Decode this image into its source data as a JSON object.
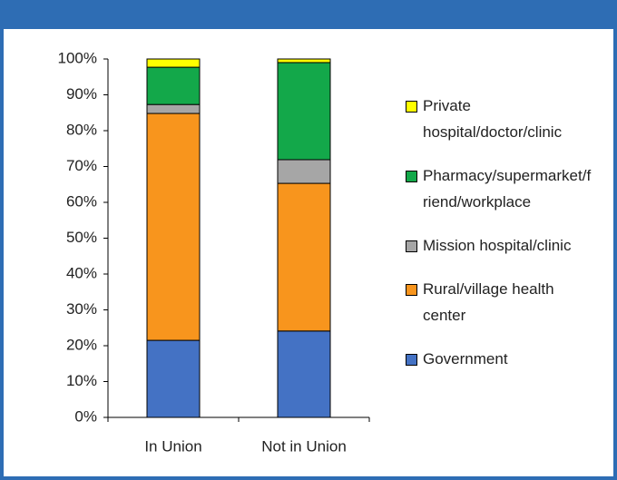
{
  "chart_data": {
    "type": "bar",
    "stacked": true,
    "categories": [
      "In Union",
      "Not in Union"
    ],
    "series": [
      {
        "name": "Government",
        "color": "#4472c4",
        "values": [
          21.5,
          24.1
        ]
      },
      {
        "name": "Rural/village health center",
        "color": "#f8951d",
        "values": [
          63.3,
          41.2
        ]
      },
      {
        "name": "Mission hospital/clinic",
        "color": "#a6a6a6",
        "values": [
          2.5,
          6.6
        ]
      },
      {
        "name": "Pharmacy/supermarket/friend/workplace",
        "color": "#13a84a",
        "values": [
          10.4,
          27.1
        ]
      },
      {
        "name": "Private hospital/doctor/clinic",
        "color": "#ffff00",
        "values": [
          2.3,
          1.0
        ]
      }
    ],
    "ylim": [
      0,
      100
    ],
    "yticks": [
      {
        "value": 0,
        "label": "0%"
      },
      {
        "value": 10,
        "label": "10%"
      },
      {
        "value": 20,
        "label": "20%"
      },
      {
        "value": 30,
        "label": "30%"
      },
      {
        "value": 40,
        "label": "40%"
      },
      {
        "value": 50,
        "label": "50%"
      },
      {
        "value": 60,
        "label": "60%"
      },
      {
        "value": 70,
        "label": "70%"
      },
      {
        "value": 80,
        "label": "80%"
      },
      {
        "value": 90,
        "label": "90%"
      },
      {
        "value": 100,
        "label": "100%"
      }
    ],
    "grid": false,
    "legend": "right"
  }
}
